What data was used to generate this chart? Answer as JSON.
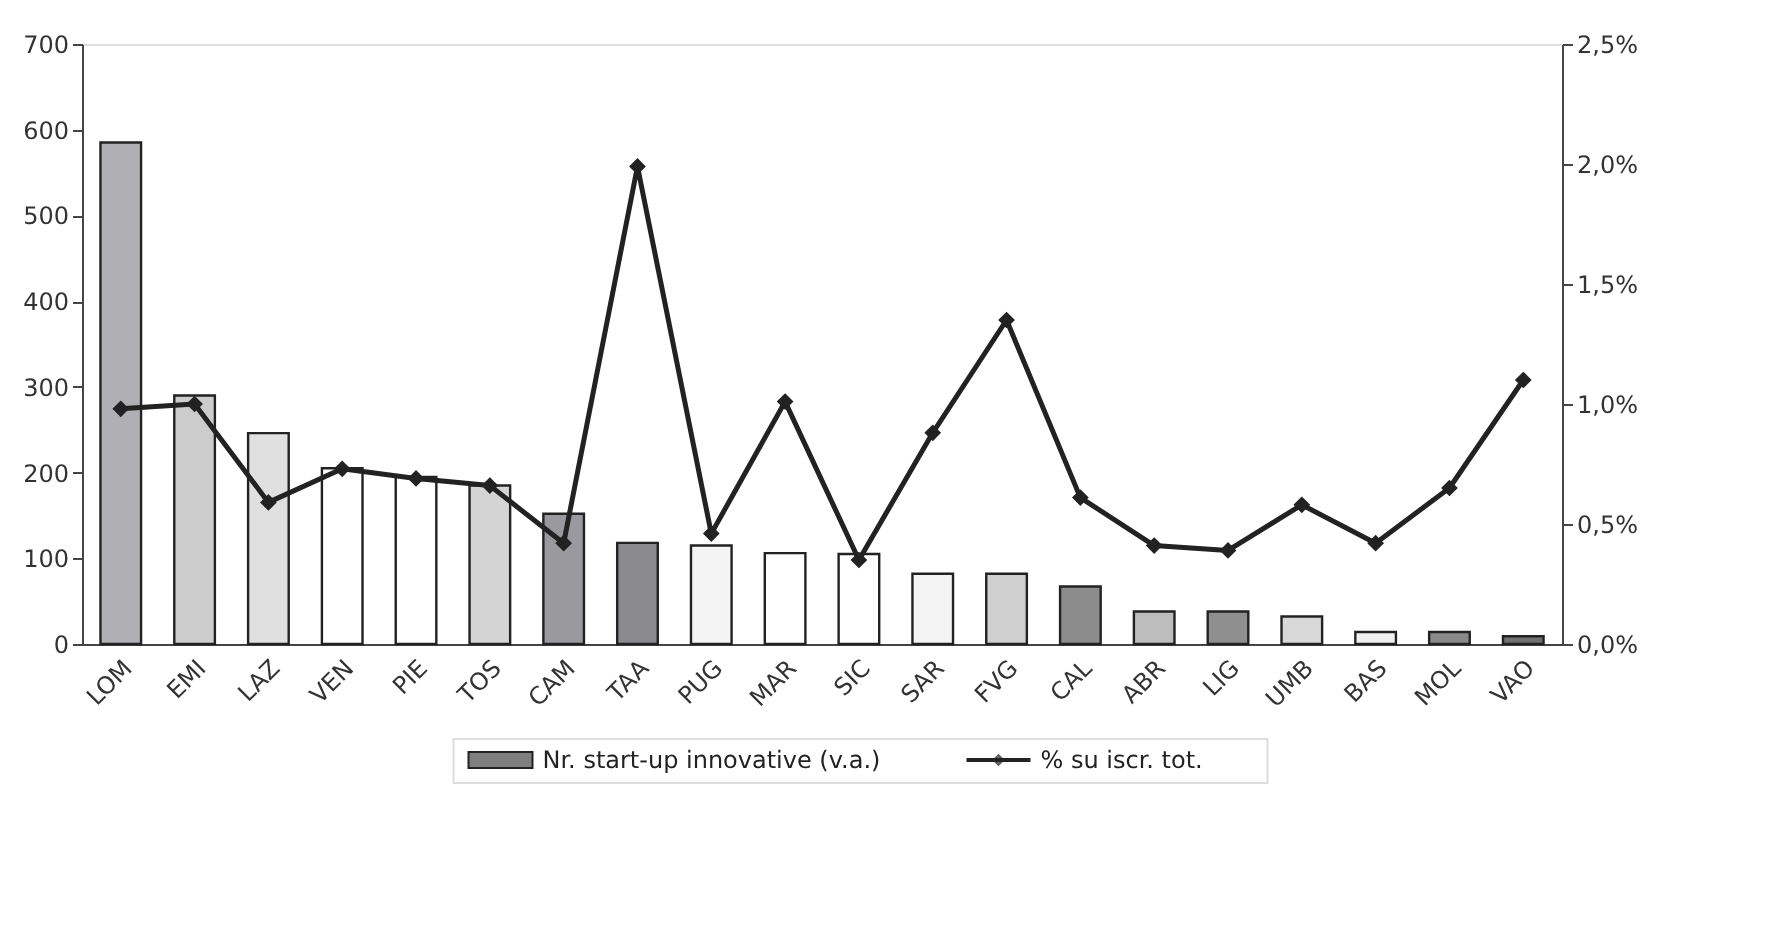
{
  "chart_data": {
    "type": "bar",
    "categories": [
      "LOM",
      "EMI",
      "LAZ",
      "VEN",
      "PIE",
      "TOS",
      "CAM",
      "TAA",
      "PUG",
      "MAR",
      "SIC",
      "SAR",
      "FVG",
      "CAL",
      "ABR",
      "LIG",
      "UMB",
      "BAS",
      "MOL",
      "VAO"
    ],
    "series": [
      {
        "name": "Nr. start-up innovative (v.a.)",
        "color": "#7f7f7f",
        "colors": [
          "#b0b0b4",
          "#cccccc",
          "#e0e0e0",
          "#ffffff",
          "#ffffff",
          "#d4d4d4",
          "#9a9a9e",
          "#8a8a8e",
          "#f4f4f4",
          "#ffffff",
          "#ffffff",
          "#f4f4f4",
          "#cfcfcf",
          "#8c8c8c",
          "#bdbdbd",
          "#8f8f8f",
          "#d8d8d8",
          "#f0f0f0",
          "#8a8a8a",
          "#707070"
        ],
        "values": [
          585,
          290,
          246,
          205,
          195,
          185,
          152,
          118,
          115,
          106,
          105,
          82,
          82,
          67,
          38,
          38,
          32,
          14,
          14,
          9
        ]
      },
      {
        "name": "% su iscr. tot.",
        "type": "line",
        "axis": "y2",
        "color": "#222222",
        "marker": "diamond",
        "values": [
          0.98,
          1.0,
          0.59,
          0.73,
          0.69,
          0.66,
          0.42,
          1.99,
          0.46,
          1.01,
          0.35,
          0.88,
          1.35,
          0.61,
          0.41,
          0.39,
          0.58,
          0.42,
          0.65,
          1.1
        ]
      }
    ],
    "ylim": [
      0,
      700
    ],
    "yticks": [
      0,
      100,
      200,
      300,
      400,
      500,
      600,
      700
    ],
    "y2lim": [
      0,
      2.5
    ],
    "y2ticks": [
      {
        "value": 0,
        "label": "0,0%"
      },
      {
        "value": 0.5,
        "label": "0,5%"
      },
      {
        "value": 1.0,
        "label": "1,0%"
      },
      {
        "value": 1.5,
        "label": "1,5%"
      },
      {
        "value": 2.0,
        "label": "2,0%"
      },
      {
        "value": 2.5,
        "label": "2,5%"
      }
    ],
    "grid": false,
    "legend": "bottom"
  }
}
